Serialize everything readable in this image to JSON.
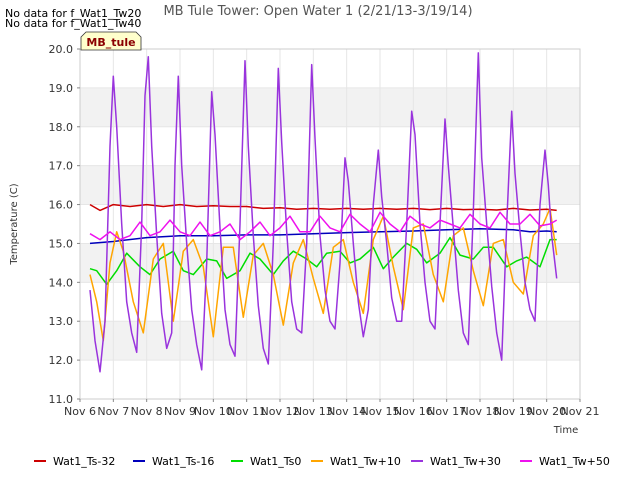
{
  "notices": [
    "No data for f_Wat1_Tw20",
    "No data for f_Wat1_Tw40"
  ],
  "badge": "MB_tule",
  "chart_data": {
    "type": "line",
    "title": "MB Tule Tower: Open Water 1 (2/21/13-3/19/14)",
    "xlabel": "Time",
    "ylabel": "Temperature (C)",
    "xlim": [
      6,
      21
    ],
    "ylim": [
      11.0,
      20.0
    ],
    "x_ticks": [
      {
        "v": 6,
        "label": "Nov 6"
      },
      {
        "v": 7,
        "label": "Nov 7"
      },
      {
        "v": 8,
        "label": "Nov 8"
      },
      {
        "v": 9,
        "label": "Nov 9"
      },
      {
        "v": 10,
        "label": "Nov 10"
      },
      {
        "v": 11,
        "label": "Nov 11"
      },
      {
        "v": 12,
        "label": "Nov 12"
      },
      {
        "v": 13,
        "label": "Nov 13"
      },
      {
        "v": 14,
        "label": "Nov 14"
      },
      {
        "v": 15,
        "label": "Nov 15"
      },
      {
        "v": 16,
        "label": "Nov 16"
      },
      {
        "v": 17,
        "label": "Nov 17"
      },
      {
        "v": 18,
        "label": "Nov 18"
      },
      {
        "v": 19,
        "label": "Nov 19"
      },
      {
        "v": 20,
        "label": "Nov 20"
      },
      {
        "v": 21,
        "label": "Nov 21"
      }
    ],
    "y_ticks": [
      {
        "v": 11,
        "label": "11.0"
      },
      {
        "v": 12,
        "label": "12.0"
      },
      {
        "v": 13,
        "label": "13.0"
      },
      {
        "v": 14,
        "label": "14.0"
      },
      {
        "v": 15,
        "label": "15.0"
      },
      {
        "v": 16,
        "label": "16.0"
      },
      {
        "v": 17,
        "label": "17.0"
      },
      {
        "v": 18,
        "label": "18.0"
      },
      {
        "v": 19,
        "label": "19.0"
      },
      {
        "v": 20,
        "label": "20.0"
      }
    ],
    "grid": true,
    "legend_position": "bottom",
    "series": [
      {
        "name": "Wat1_Ts-32",
        "color": "#cc0000",
        "x": [
          6.3,
          6.6,
          7.0,
          7.5,
          8.0,
          8.5,
          9.0,
          9.5,
          10.0,
          10.5,
          11.0,
          11.5,
          12.0,
          12.5,
          13.0,
          13.5,
          14.0,
          14.5,
          15.0,
          15.5,
          16.0,
          16.5,
          17.0,
          17.5,
          18.0,
          18.5,
          19.0,
          19.5,
          20.0,
          20.3
        ],
        "y": [
          16.0,
          15.85,
          16.0,
          15.95,
          16.0,
          15.95,
          16.0,
          15.95,
          15.97,
          15.95,
          15.95,
          15.9,
          15.92,
          15.88,
          15.9,
          15.88,
          15.9,
          15.88,
          15.9,
          15.88,
          15.9,
          15.87,
          15.9,
          15.87,
          15.88,
          15.86,
          15.9,
          15.86,
          15.88,
          15.85
        ]
      },
      {
        "name": "Wat1_Ts-16",
        "color": "#0000bb",
        "x": [
          6.3,
          7.0,
          8.0,
          9.0,
          10.0,
          11.0,
          12.0,
          13.0,
          14.0,
          15.0,
          16.0,
          17.0,
          18.0,
          19.0,
          19.5,
          20.0,
          20.3
        ],
        "y": [
          15.0,
          15.05,
          15.15,
          15.2,
          15.2,
          15.22,
          15.22,
          15.25,
          15.28,
          15.3,
          15.32,
          15.35,
          15.38,
          15.35,
          15.3,
          15.32,
          15.3
        ]
      },
      {
        "name": "Wat1_Ts0",
        "color": "#00dd00",
        "x": [
          6.3,
          6.5,
          6.8,
          7.1,
          7.4,
          7.8,
          8.1,
          8.4,
          8.8,
          9.1,
          9.4,
          9.8,
          10.1,
          10.4,
          10.8,
          11.1,
          11.4,
          11.8,
          12.1,
          12.4,
          12.8,
          13.1,
          13.4,
          13.8,
          14.1,
          14.4,
          14.8,
          15.1,
          15.4,
          15.8,
          16.1,
          16.4,
          16.8,
          17.1,
          17.4,
          17.8,
          18.1,
          18.4,
          18.8,
          19.1,
          19.4,
          19.8,
          20.1,
          20.3
        ],
        "y": [
          14.35,
          14.3,
          13.95,
          14.3,
          14.75,
          14.4,
          14.2,
          14.6,
          14.8,
          14.3,
          14.2,
          14.6,
          14.55,
          14.1,
          14.3,
          14.75,
          14.6,
          14.2,
          14.55,
          14.8,
          14.6,
          14.4,
          14.75,
          14.8,
          14.5,
          14.6,
          14.9,
          14.35,
          14.65,
          15.0,
          14.85,
          14.5,
          14.75,
          15.15,
          14.7,
          14.6,
          14.9,
          14.9,
          14.4,
          14.55,
          14.65,
          14.4,
          15.1,
          15.1
        ]
      },
      {
        "name": "Wat1_Tw+10",
        "color": "#ffa500",
        "x": [
          6.3,
          6.5,
          6.7,
          6.9,
          7.1,
          7.3,
          7.6,
          7.9,
          8.2,
          8.5,
          8.8,
          9.1,
          9.4,
          9.7,
          10.0,
          10.3,
          10.6,
          10.9,
          11.2,
          11.5,
          11.8,
          12.1,
          12.4,
          12.7,
          13.0,
          13.3,
          13.6,
          13.9,
          14.2,
          14.5,
          14.8,
          15.1,
          15.4,
          15.7,
          16.0,
          16.3,
          16.6,
          16.9,
          17.2,
          17.5,
          17.8,
          18.1,
          18.4,
          18.7,
          19.0,
          19.3,
          19.6,
          19.9,
          20.1,
          20.3
        ],
        "y": [
          14.2,
          13.5,
          12.5,
          14.5,
          15.3,
          14.8,
          13.5,
          12.7,
          14.6,
          15.0,
          13.0,
          14.8,
          15.1,
          14.4,
          12.6,
          14.9,
          14.9,
          13.1,
          14.7,
          15.0,
          14.2,
          12.9,
          14.5,
          15.1,
          14.1,
          13.2,
          14.9,
          15.1,
          14.0,
          13.2,
          15.1,
          15.7,
          14.4,
          13.3,
          15.4,
          15.5,
          14.2,
          13.5,
          15.2,
          15.4,
          14.3,
          13.4,
          15.0,
          15.1,
          14.0,
          13.7,
          15.2,
          15.5,
          15.9,
          14.7
        ]
      },
      {
        "name": "Wat1_Tw+30",
        "color": "#9933dd",
        "x": [
          6.3,
          6.45,
          6.6,
          6.75,
          6.9,
          7.0,
          7.1,
          7.25,
          7.4,
          7.55,
          7.7,
          7.85,
          7.95,
          8.05,
          8.15,
          8.3,
          8.45,
          8.6,
          8.75,
          8.85,
          8.95,
          9.05,
          9.2,
          9.35,
          9.5,
          9.65,
          9.8,
          9.95,
          10.05,
          10.2,
          10.35,
          10.5,
          10.65,
          10.8,
          10.95,
          11.05,
          11.2,
          11.35,
          11.5,
          11.65,
          11.8,
          11.95,
          12.05,
          12.2,
          12.35,
          12.5,
          12.65,
          12.8,
          12.95,
          13.05,
          13.2,
          13.35,
          13.5,
          13.65,
          13.8,
          13.95,
          14.05,
          14.2,
          14.35,
          14.5,
          14.65,
          14.8,
          14.95,
          15.05,
          15.2,
          15.35,
          15.5,
          15.65,
          15.8,
          15.95,
          16.05,
          16.2,
          16.35,
          16.5,
          16.65,
          16.8,
          16.95,
          17.05,
          17.2,
          17.35,
          17.5,
          17.65,
          17.8,
          17.95,
          18.05,
          18.2,
          18.35,
          18.5,
          18.65,
          18.8,
          18.95,
          19.05,
          19.2,
          19.35,
          19.5,
          19.65,
          19.8,
          19.95,
          20.05,
          20.15,
          20.3
        ],
        "y": [
          13.8,
          12.5,
          11.7,
          13.0,
          17.5,
          19.3,
          18.0,
          15.5,
          13.5,
          12.7,
          12.2,
          15.5,
          18.8,
          19.8,
          17.5,
          15.2,
          13.2,
          12.3,
          12.7,
          17.0,
          19.3,
          17.0,
          15.0,
          13.3,
          12.4,
          11.75,
          14.5,
          18.9,
          17.8,
          15.4,
          13.3,
          12.4,
          12.1,
          15.5,
          19.7,
          17.5,
          15.2,
          13.4,
          12.3,
          11.9,
          15.0,
          19.5,
          17.6,
          15.3,
          13.5,
          12.8,
          12.7,
          15.0,
          19.6,
          17.7,
          15.2,
          13.8,
          13.0,
          12.8,
          14.5,
          17.2,
          16.6,
          15.0,
          13.5,
          12.6,
          13.3,
          16.0,
          17.4,
          16.2,
          15.0,
          13.6,
          13.0,
          13.0,
          15.5,
          18.4,
          17.8,
          15.5,
          14.0,
          13.0,
          12.8,
          15.5,
          18.2,
          17.0,
          15.4,
          13.8,
          12.7,
          12.4,
          15.8,
          19.9,
          17.2,
          15.5,
          13.9,
          12.7,
          12.0,
          15.5,
          18.4,
          16.8,
          15.3,
          14.0,
          13.3,
          13.0,
          16.0,
          17.4,
          16.5,
          15.2,
          14.1
        ]
      },
      {
        "name": "Wat1_Tw+50",
        "color": "#ee11ee",
        "x": [
          6.3,
          6.6,
          6.9,
          7.2,
          7.5,
          7.8,
          8.1,
          8.4,
          8.7,
          9.0,
          9.3,
          9.6,
          9.9,
          10.2,
          10.5,
          10.8,
          11.1,
          11.4,
          11.7,
          12.0,
          12.3,
          12.6,
          12.9,
          13.2,
          13.5,
          13.8,
          14.1,
          14.4,
          14.7,
          15.0,
          15.3,
          15.6,
          15.9,
          16.2,
          16.5,
          16.8,
          17.1,
          17.4,
          17.7,
          18.0,
          18.3,
          18.6,
          18.9,
          19.2,
          19.5,
          19.8,
          20.1,
          20.3
        ],
        "y": [
          15.25,
          15.1,
          15.3,
          15.1,
          15.2,
          15.55,
          15.2,
          15.3,
          15.6,
          15.3,
          15.2,
          15.55,
          15.2,
          15.3,
          15.5,
          15.1,
          15.3,
          15.55,
          15.2,
          15.4,
          15.7,
          15.3,
          15.3,
          15.7,
          15.4,
          15.3,
          15.75,
          15.5,
          15.3,
          15.8,
          15.5,
          15.3,
          15.7,
          15.5,
          15.4,
          15.6,
          15.5,
          15.4,
          15.75,
          15.5,
          15.4,
          15.8,
          15.5,
          15.5,
          15.75,
          15.45,
          15.5,
          15.6
        ]
      }
    ]
  }
}
